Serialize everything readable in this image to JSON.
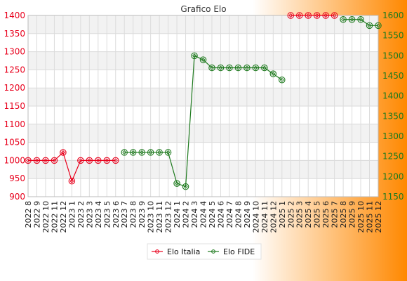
{
  "chart_data": {
    "type": "line",
    "title": "Grafico Elo",
    "categories": [
      "2022 8",
      "2022 9",
      "2022 10",
      "2022 11",
      "2022 12",
      "2023 1",
      "2023 2",
      "2023 3",
      "2023 4",
      "2023 5",
      "2023 6",
      "2023 7",
      "2023 8",
      "2023 9",
      "2023 10",
      "2023 11",
      "2023 12",
      "2024 1",
      "2024 2",
      "2024 3",
      "2024 4",
      "2024 5",
      "2024 6",
      "2024 7",
      "2024 8",
      "2024 9",
      "2024 10",
      "2024 11",
      "2024 12",
      "2025 1",
      "2025 2",
      "2025 3",
      "2025 4",
      "2025 5",
      "2025 6",
      "2025 7",
      "2025 8",
      "2025 9",
      "2025 10",
      "2025 11",
      "2025 12"
    ],
    "y_left": {
      "min": 900,
      "max": 1400,
      "ticks": [
        900,
        950,
        1000,
        1050,
        1100,
        1150,
        1200,
        1250,
        1300,
        1350,
        1400
      ]
    },
    "y_right": {
      "min": 1150,
      "max": 1600,
      "ticks": [
        1150,
        1200,
        1250,
        1300,
        1350,
        1400,
        1450,
        1500,
        1550,
        1600
      ]
    },
    "series": [
      {
        "name": "Elo Italia",
        "axis": "left",
        "color": "#e8001c",
        "values": [
          1000,
          1000,
          1000,
          1000,
          1022,
          943,
          1000,
          1000,
          1000,
          1000,
          1000,
          null,
          null,
          null,
          null,
          null,
          null,
          null,
          null,
          null,
          null,
          null,
          null,
          null,
          null,
          null,
          null,
          null,
          null,
          null,
          1400,
          1400,
          1400,
          1400,
          1400,
          1400,
          null,
          null,
          null,
          null,
          null
        ]
      },
      {
        "name": "Elo FIDE",
        "axis": "right",
        "color": "#1e7a1e",
        "values": [
          null,
          null,
          null,
          null,
          null,
          null,
          null,
          null,
          null,
          null,
          null,
          1260,
          1260,
          1260,
          1260,
          1260,
          1260,
          1183,
          1175,
          1500,
          1490,
          1470,
          1470,
          1470,
          1470,
          1470,
          1470,
          1470,
          1455,
          1440,
          null,
          null,
          null,
          null,
          null,
          null,
          1590,
          1590,
          1590,
          1575,
          1575
        ]
      }
    ],
    "grid": true,
    "legend_position": "bottom-center",
    "background_gradient": [
      "#ffffff",
      "#ff8800"
    ]
  }
}
